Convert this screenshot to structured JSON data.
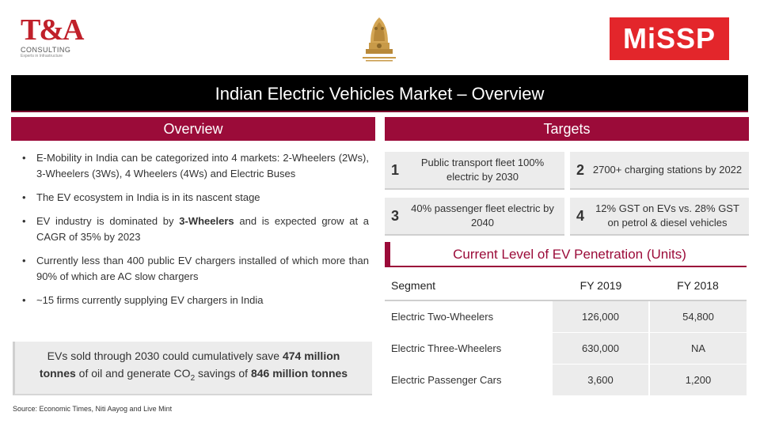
{
  "logos": {
    "ta_mark": "T&A",
    "ta_sub": "CONSULTING",
    "ta_tag": "Experts in Infrastructure",
    "missp": "MiSSP"
  },
  "title": "Indian Electric Vehicles Market – Overview",
  "overview": {
    "heading": "Overview",
    "bullet_symbol": "•",
    "bullets": [
      {
        "text": "E-Mobility in India can be categorized into 4 markets: 2-Wheelers (2Ws), 3-Wheelers (3Ws), 4 Wheelers (4Ws) and Electric Buses"
      },
      {
        "text": "The EV ecosystem in India is in its nascent stage"
      },
      {
        "pre": "EV industry is dominated by ",
        "bold": "3-Wheelers",
        "post": " and is expected grow at a CAGR of 35% by 2023"
      },
      {
        "text": "Currently less than 400 public EV chargers installed of which more than 90% of which are AC slow chargers"
      },
      {
        "text": "~15 firms currently supplying EV chargers in India"
      }
    ],
    "savings": {
      "part1": "EVs sold through 2030 could cumulatively save ",
      "bold1": "474 million",
      "bold2": "tonnes",
      "part2": " of oil and generate CO",
      "sub": "2",
      "part3": " savings of ",
      "bold3": "846 million tonnes"
    },
    "source": "Source: Economic Times, Niti Aayog and Live Mint"
  },
  "targets": {
    "heading": "Targets",
    "items": [
      {
        "num": "1",
        "text": "Public transport fleet 100% electric by 2030"
      },
      {
        "num": "2",
        "text": "2700+ charging stations by 2022"
      },
      {
        "num": "3",
        "text": "40% passenger fleet electric by 2040"
      },
      {
        "num": "4",
        "text": "12% GST on EVs vs. 28% GST on petrol & diesel vehicles"
      }
    ]
  },
  "penetration": {
    "heading": "Current Level of EV Penetration (Units)",
    "columns": [
      "Segment",
      "FY 2019",
      "FY 2018"
    ],
    "rows": [
      {
        "segment": "Electric Two-Wheelers",
        "fy2019": "126,000",
        "fy2018": "54,800"
      },
      {
        "segment": "Electric Three-Wheelers",
        "fy2019": "630,000",
        "fy2018": "NA"
      },
      {
        "segment": "Electric Passenger Cars",
        "fy2019": "3,600",
        "fy2018": "1,200"
      }
    ]
  },
  "colors": {
    "accent": "#9b0b39",
    "title_bg": "#000000",
    "panel": "#ececec",
    "missp_red": "#e3262b",
    "ta_red": "#c0202a"
  }
}
